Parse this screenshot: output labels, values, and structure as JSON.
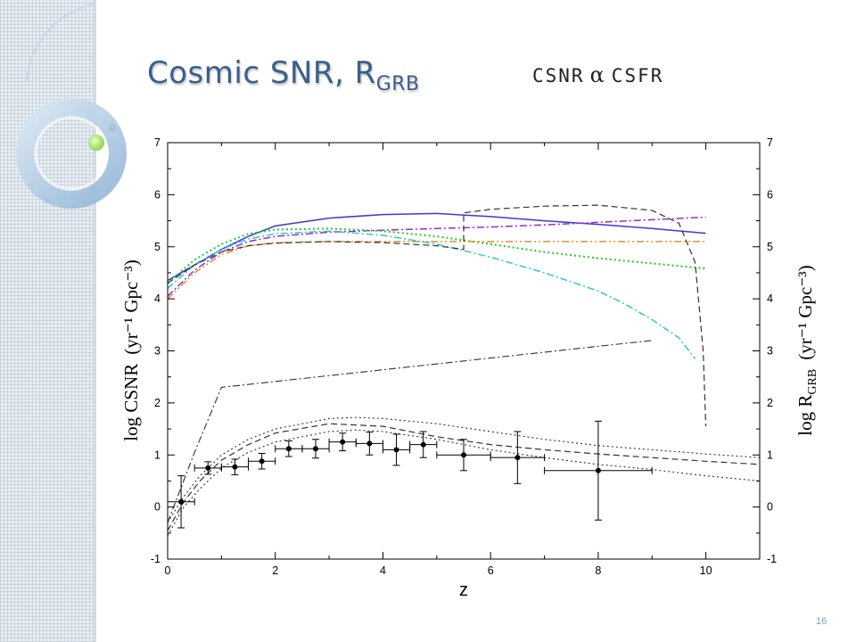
{
  "slide": {
    "title_main": "Cosmic SNR, R",
    "title_sub": "GRB",
    "formula_left": "CSNR",
    "formula_symbol": "α",
    "formula_right": "CSFR",
    "page_number": "16"
  },
  "chart_data": {
    "type": "line",
    "xlabel": "z",
    "ylabel": "log CSNR",
    "ylabel_units": "(yr⁻¹ Gpc⁻³)",
    "y2label": "log R",
    "y2label_sub": "GRB",
    "y2label_units": "(yr⁻¹ Gpc⁻³)",
    "xlim": [
      0,
      11
    ],
    "ylim": [
      -1,
      7
    ],
    "x_ticks": [
      "0",
      "2",
      "4",
      "6",
      "8",
      "10"
    ],
    "y_ticks": [
      "-1",
      "0",
      "1",
      "2",
      "3",
      "4",
      "5",
      "6",
      "7"
    ],
    "grid": false,
    "series": [
      {
        "color": "#3a3ad8",
        "style": "solid",
        "width": 1.5,
        "x": [
          0,
          0.5,
          1,
          1.5,
          2,
          3,
          4,
          5,
          6,
          7,
          8,
          9,
          10
        ],
        "y": [
          4.35,
          4.65,
          4.95,
          5.2,
          5.4,
          5.55,
          5.62,
          5.64,
          5.58,
          5.5,
          5.43,
          5.35,
          5.26
        ]
      },
      {
        "color": "#9a2bd0",
        "style": "dashdot",
        "width": 1.5,
        "x": [
          0,
          0.5,
          1,
          1.5,
          2,
          3,
          4,
          5,
          6,
          7,
          8,
          9,
          10
        ],
        "y": [
          4.05,
          4.55,
          4.9,
          5.1,
          5.2,
          5.28,
          5.32,
          5.35,
          5.38,
          5.42,
          5.47,
          5.52,
          5.57
        ]
      },
      {
        "color": "#22cc22",
        "style": "dotted",
        "width": 2,
        "x": [
          0,
          0.5,
          1,
          1.5,
          2,
          3,
          4,
          5,
          6,
          7,
          8,
          9,
          10
        ],
        "y": [
          4.3,
          4.75,
          5.05,
          5.25,
          5.33,
          5.35,
          5.3,
          5.2,
          5.05,
          4.9,
          4.78,
          4.68,
          4.58
        ]
      },
      {
        "color": "#e09020",
        "style": "dashdotdot",
        "width": 1.5,
        "x": [
          0,
          0.5,
          1,
          1.5,
          2,
          3,
          4,
          5,
          6,
          7,
          8,
          9,
          10
        ],
        "y": [
          4.0,
          4.5,
          4.85,
          5.02,
          5.08,
          5.1,
          5.1,
          5.1,
          5.1,
          5.1,
          5.1,
          5.1,
          5.1
        ]
      },
      {
        "color": "#30c8c8",
        "style": "dashdot",
        "width": 1.5,
        "x": [
          0,
          0.5,
          1,
          1.5,
          2,
          3,
          4,
          5,
          6,
          7,
          8,
          8.5,
          9,
          9.5,
          9.8
        ],
        "y": [
          4.2,
          4.65,
          4.95,
          5.15,
          5.25,
          5.3,
          5.22,
          5.05,
          4.8,
          4.5,
          4.15,
          3.9,
          3.6,
          3.25,
          2.85
        ]
      },
      {
        "color": "#333333",
        "style": "dashed",
        "width": 1.2,
        "x": [
          0,
          0.5,
          1,
          1.5,
          2,
          3,
          4,
          5,
          5.5,
          5.5,
          6,
          7,
          8,
          9,
          9.5,
          9.8,
          9.95,
          10
        ],
        "y": [
          4.3,
          4.65,
          4.9,
          5.02,
          5.07,
          5.1,
          5.08,
          5.02,
          4.95,
          5.65,
          5.72,
          5.78,
          5.8,
          5.7,
          5.45,
          4.7,
          3.0,
          1.55
        ]
      },
      {
        "color": "#333333",
        "style": "dashdot",
        "width": 1.1,
        "x": [
          0,
          0.5,
          1,
          9
        ],
        "y": [
          -0.3,
          1.05,
          2.3,
          3.2
        ]
      },
      {
        "color": "#333333",
        "style": "dashed",
        "width": 1.2,
        "x": [
          0,
          0.3,
          0.6,
          1,
          1.5,
          2,
          3,
          4,
          5,
          6,
          7,
          8,
          9,
          10,
          11
        ],
        "y": [
          -0.45,
          0.1,
          0.5,
          0.9,
          1.2,
          1.42,
          1.6,
          1.55,
          1.35,
          1.2,
          1.1,
          1.02,
          0.95,
          0.88,
          0.82
        ]
      },
      {
        "color": "#333333",
        "style": "dotted",
        "width": 1.1,
        "x": [
          0,
          0.3,
          0.6,
          1,
          1.5,
          2,
          3,
          3.5,
          4,
          5,
          6,
          7,
          8,
          9,
          10,
          11
        ],
        "y": [
          -0.3,
          0.2,
          0.6,
          1.0,
          1.3,
          1.5,
          1.7,
          1.72,
          1.7,
          1.6,
          1.45,
          1.3,
          1.18,
          1.1,
          1.02,
          0.95
        ]
      },
      {
        "color": "#333333",
        "style": "dotted",
        "width": 1.1,
        "x": [
          0,
          0.3,
          0.6,
          1,
          1.5,
          2,
          3,
          3.5,
          4,
          5,
          6,
          7,
          8,
          9,
          10,
          11
        ],
        "y": [
          -0.55,
          0.0,
          0.35,
          0.75,
          1.05,
          1.25,
          1.45,
          1.48,
          1.45,
          1.3,
          1.1,
          0.95,
          0.82,
          0.72,
          0.6,
          0.5
        ]
      }
    ],
    "points": [
      {
        "x": 0.25,
        "y": 0.1,
        "xerr": 0.25,
        "yerr": 0.5
      },
      {
        "x": 0.75,
        "y": 0.75,
        "xerr": 0.25,
        "yerr": 0.12
      },
      {
        "x": 1.25,
        "y": 0.77,
        "xerr": 0.25,
        "yerr": 0.15
      },
      {
        "x": 1.75,
        "y": 0.88,
        "xerr": 0.25,
        "yerr": 0.15
      },
      {
        "x": 2.25,
        "y": 1.12,
        "xerr": 0.25,
        "yerr": 0.15
      },
      {
        "x": 2.75,
        "y": 1.12,
        "xerr": 0.25,
        "yerr": 0.18
      },
      {
        "x": 3.25,
        "y": 1.25,
        "xerr": 0.25,
        "yerr": 0.17
      },
      {
        "x": 3.75,
        "y": 1.22,
        "xerr": 0.25,
        "yerr": 0.22
      },
      {
        "x": 4.25,
        "y": 1.1,
        "xerr": 0.25,
        "yerr": 0.3
      },
      {
        "x": 4.75,
        "y": 1.2,
        "xerr": 0.25,
        "yerr": 0.25
      },
      {
        "x": 5.5,
        "y": 1.0,
        "xerr": 0.5,
        "yerr": 0.3
      },
      {
        "x": 6.5,
        "y": 0.95,
        "xerr": 0.5,
        "yerr": 0.5
      },
      {
        "x": 8.0,
        "y": 0.7,
        "xerr": 1.0,
        "yerr": 0.95
      }
    ]
  }
}
